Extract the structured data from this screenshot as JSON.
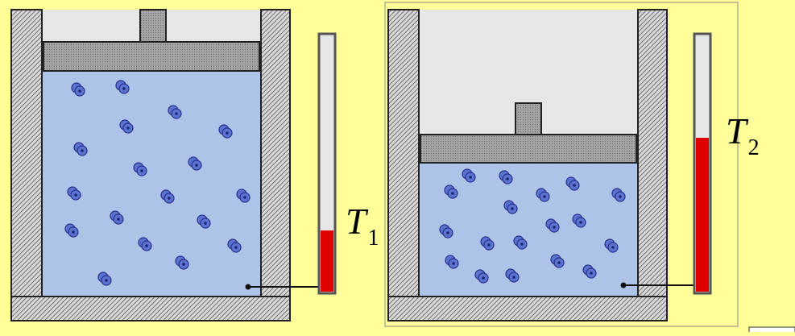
{
  "colors": {
    "background": "#ffff99",
    "gas": "#adc3e8",
    "wall_fill": "#8a8a8a",
    "piston": "#9a9a9a",
    "air": "#e6e6e6",
    "molecule": "#4a64c8",
    "molecule_outline": "#2a2f8a",
    "mercury": "#e00000",
    "thermometer_tube": "#e6e6e6"
  },
  "left_system": {
    "temperature_symbol": "T",
    "temperature_subscript": "1",
    "thermometer_level": 0.24
  },
  "right_system": {
    "temperature_symbol": "T",
    "temperature_subscript": "2",
    "thermometer_level": 0.6
  },
  "icons": {
    "molecule": "gas-molecule-icon",
    "probe": "probe-dot-icon"
  }
}
